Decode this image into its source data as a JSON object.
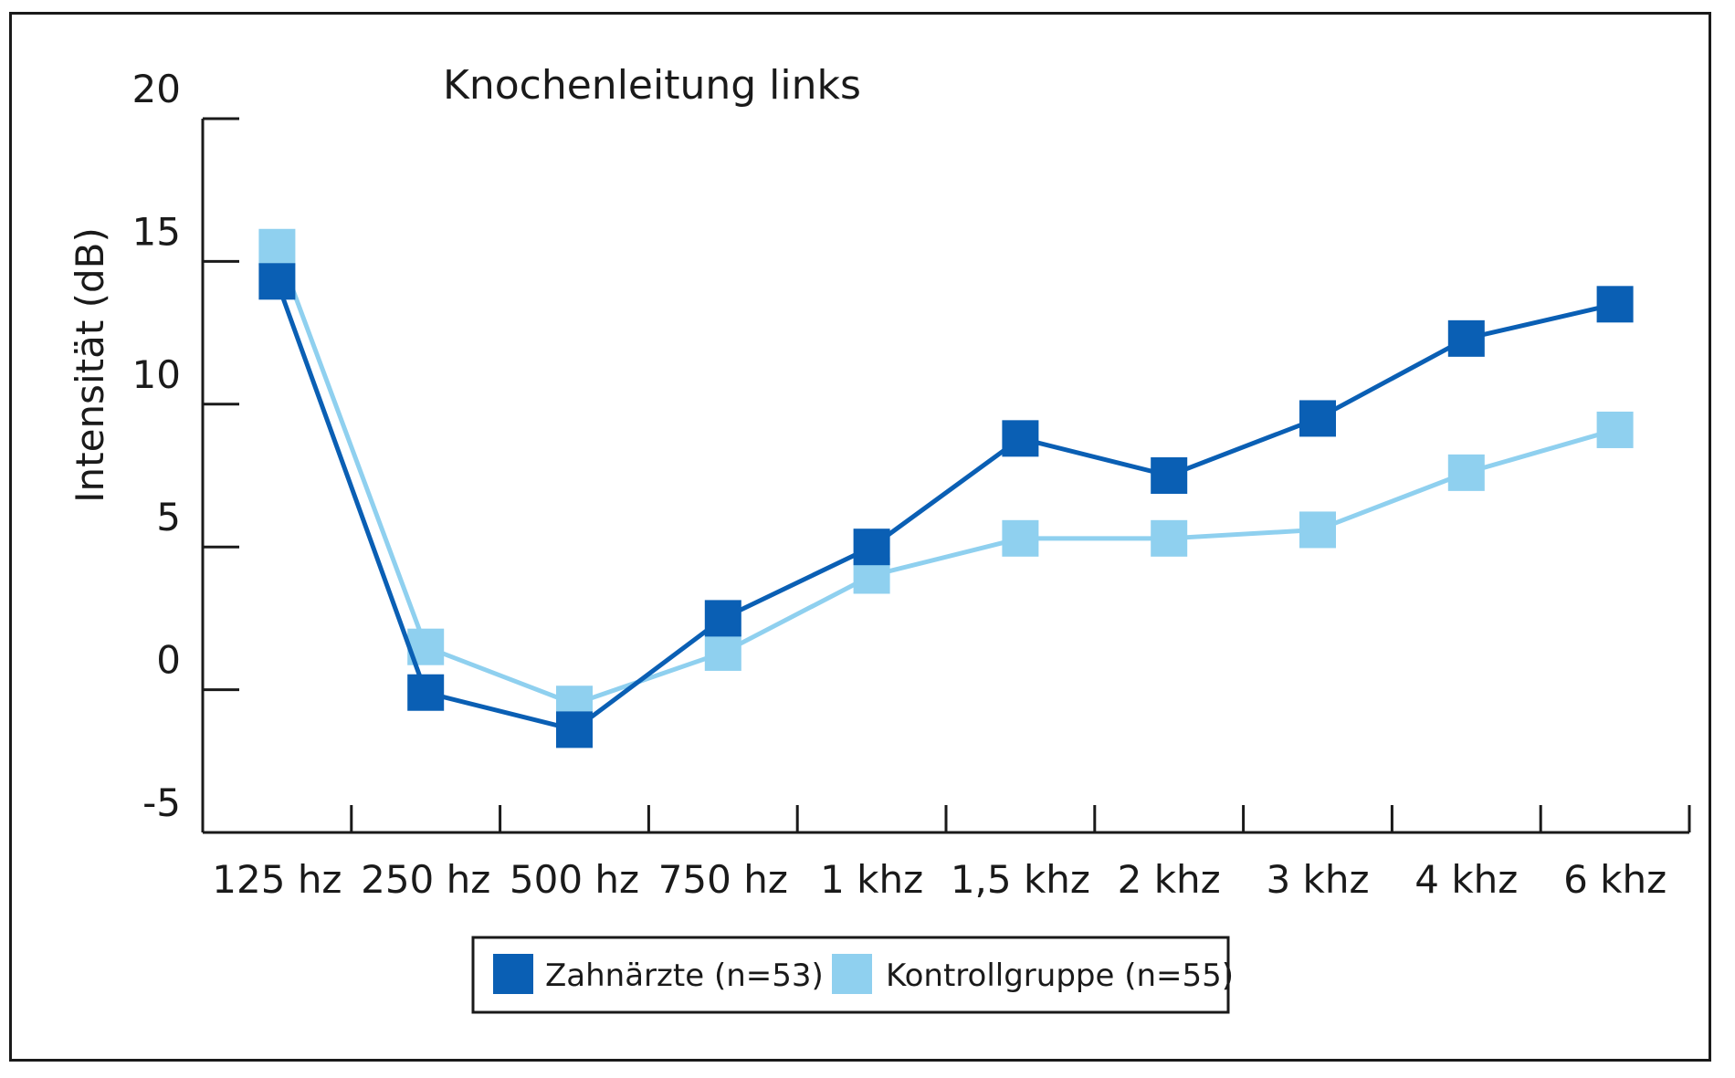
{
  "chart_data": {
    "type": "line",
    "title": "Knochenleitung links",
    "ylabel": "Intensität (dB)",
    "xlabel": "",
    "categories": [
      "125 hz",
      "250 hz",
      "500 hz",
      "750 hz",
      "1 khz",
      "1,5 khz",
      "2 khz",
      "3 khz",
      "4 khz",
      "6 khz"
    ],
    "ylim": [
      -5,
      20
    ],
    "yticks": [
      "-5",
      "0",
      "5",
      "10",
      "15",
      "20"
    ],
    "grid": false,
    "legend_position": "bottom",
    "series": [
      {
        "name": "Zahnärzte (n=53)",
        "color": "#0a5fb4",
        "marker": "square",
        "values": [
          14.3,
          -0.1,
          -1.4,
          2.5,
          5.0,
          8.8,
          7.5,
          9.5,
          12.3,
          13.5
        ]
      },
      {
        "name": "Kontrollgruppe (n=55)",
        "color": "#8fd0ef",
        "marker": "square",
        "values": [
          15.5,
          1.5,
          -0.5,
          1.3,
          4.0,
          5.3,
          5.3,
          5.6,
          7.6,
          9.1
        ]
      }
    ]
  }
}
